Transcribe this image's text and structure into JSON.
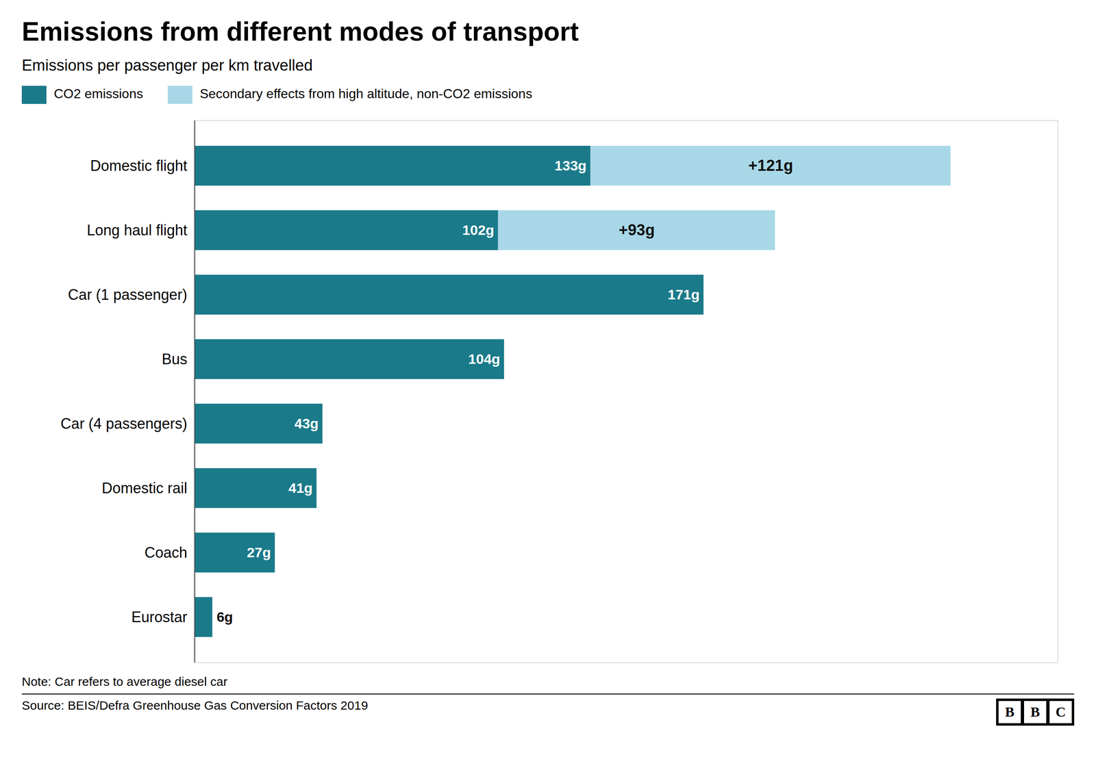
{
  "chart_data": {
    "type": "bar",
    "orientation": "horizontal",
    "stacked": true,
    "data_labels": true,
    "title": "Emissions from different modes of transport",
    "subtitle": "Emissions per passenger per km travelled",
    "annotations": [
      "Note: Car refers to average diesel car",
      "Source: BEIS/Defra Greenhouse Gas Conversion Factors 2019",
      "BBC"
    ],
    "categories": [
      "Domestic flight",
      "Long haul flight",
      "Car (1 passenger)",
      "Bus",
      "Car (4 passengers)",
      "Domestic rail",
      "Coach",
      "Eurostar"
    ],
    "series": [
      {
        "name": "CO2 emissions",
        "color": "#1a7a8a",
        "values": [
          133,
          102,
          171,
          104,
          43,
          41,
          27,
          6
        ],
        "value_labels": [
          "133g",
          "102g",
          "171g",
          "104g",
          "43g",
          "41g",
          "27g",
          "6g"
        ]
      },
      {
        "name": "Secondary effects from high altitude, non-CO2 emissions",
        "color": "#a8d8e8",
        "values": [
          121,
          93,
          0,
          0,
          0,
          0,
          0,
          0
        ],
        "value_labels": [
          "+121g",
          "+93g",
          null,
          null,
          null,
          null,
          null,
          null
        ]
      }
    ],
    "xlim": [
      0,
      290
    ],
    "tick_labels": "y",
    "grid": false,
    "legend": "top left"
  }
}
